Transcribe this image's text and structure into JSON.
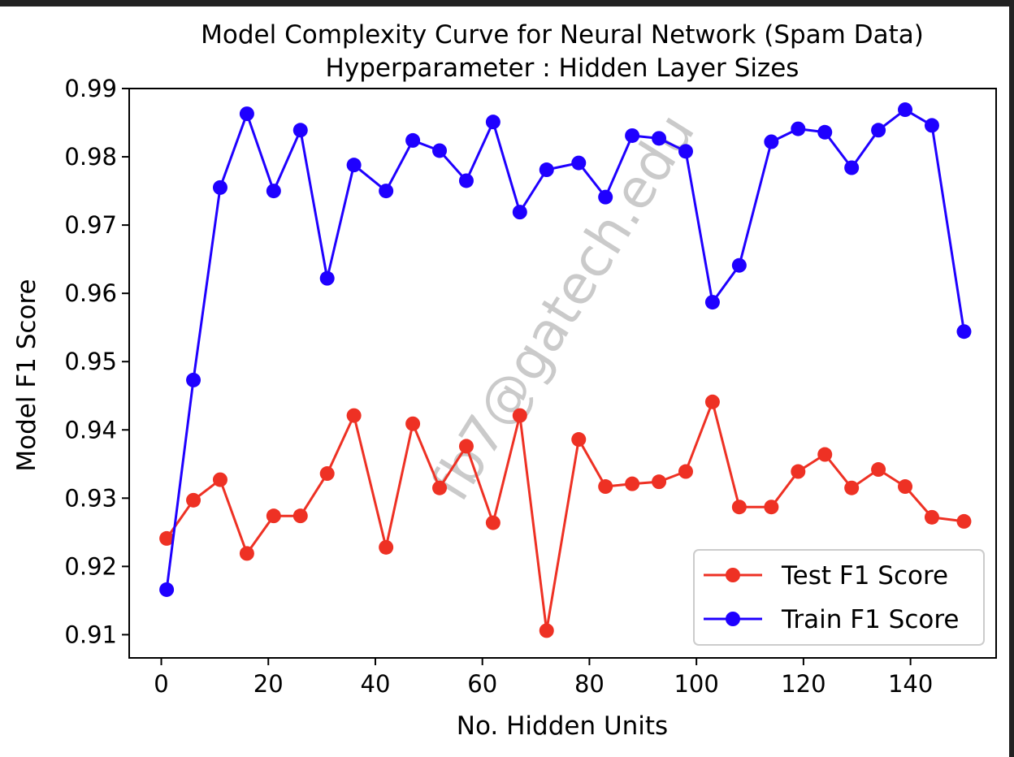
{
  "chart_data": {
    "type": "line",
    "title": "Model Complexity Curve for Neural Network (Spam Data)",
    "subtitle": "Hyperparameter : Hidden Layer Sizes",
    "xlabel": "No. Hidden Units",
    "ylabel": "Model F1 Score",
    "xlim": [
      -6,
      156
    ],
    "ylim": [
      0.9066,
      0.99
    ],
    "xticks": [
      0,
      20,
      40,
      60,
      80,
      100,
      120,
      140
    ],
    "yticks": [
      0.91,
      0.92,
      0.93,
      0.94,
      0.95,
      0.96,
      0.97,
      0.98,
      0.99
    ],
    "grid": false,
    "legend_position": "lower-right",
    "watermark": "fb7@gatech.edu",
    "x": [
      1,
      6,
      11,
      16,
      21,
      26,
      31,
      36,
      42,
      47,
      52,
      57,
      62,
      67,
      72,
      78,
      83,
      88,
      93,
      98,
      103,
      108,
      114,
      119,
      124,
      129,
      134,
      139,
      144,
      150
    ],
    "series": [
      {
        "name": "Test F1 Score",
        "color": "#ee3124",
        "marker": "circle",
        "values": [
          0.9241,
          0.9297,
          0.9327,
          0.9219,
          0.9274,
          0.9274,
          0.9336,
          0.9421,
          0.9228,
          0.9409,
          0.9315,
          0.9376,
          0.9264,
          0.9421,
          0.9106,
          0.9386,
          0.9317,
          0.9321,
          0.9324,
          0.9339,
          0.9441,
          0.9287,
          0.9287,
          0.9339,
          0.9364,
          0.9315,
          0.9342,
          0.9317,
          0.9272,
          0.9266
        ]
      },
      {
        "name": "Train F1 Score",
        "color": "#1f00ff",
        "marker": "circle",
        "values": [
          0.9166,
          0.9473,
          0.9755,
          0.9863,
          0.975,
          0.9839,
          0.9622,
          0.9788,
          0.975,
          0.9824,
          0.9809,
          0.9765,
          0.9851,
          0.9719,
          0.9781,
          0.9791,
          0.9741,
          0.9831,
          0.9827,
          0.9808,
          0.9587,
          0.9641,
          0.9822,
          0.9841,
          0.9836,
          0.9784,
          0.9839,
          0.9869,
          0.9846,
          0.9544
        ]
      }
    ]
  }
}
